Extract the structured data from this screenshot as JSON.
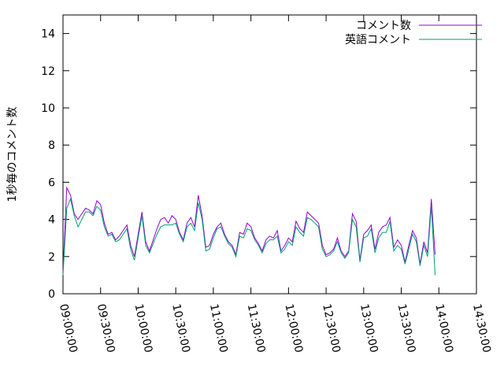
{
  "chart_data": {
    "type": "line",
    "ylabel": "1秒毎のコメント数",
    "legend": "top-right",
    "x": [
      "09:00:00",
      "09:03:00",
      "09:06:00",
      "09:09:00",
      "09:12:00",
      "09:15:00",
      "09:18:00",
      "09:21:00",
      "09:24:00",
      "09:27:00",
      "09:30:00",
      "09:33:00",
      "09:36:00",
      "09:39:00",
      "09:42:00",
      "09:45:00",
      "09:48:00",
      "09:51:00",
      "09:54:00",
      "09:57:00",
      "10:00:00",
      "10:03:00",
      "10:06:00",
      "10:09:00",
      "10:12:00",
      "10:15:00",
      "10:18:00",
      "10:21:00",
      "10:24:00",
      "10:27:00",
      "10:30:00",
      "10:33:00",
      "10:36:00",
      "10:39:00",
      "10:42:00",
      "10:45:00",
      "10:48:00",
      "10:51:00",
      "10:54:00",
      "10:57:00",
      "11:00:00",
      "11:03:00",
      "11:06:00",
      "11:09:00",
      "11:12:00",
      "11:15:00",
      "11:18:00",
      "11:21:00",
      "11:24:00",
      "11:27:00",
      "11:30:00",
      "11:33:00",
      "11:36:00",
      "11:39:00",
      "11:42:00",
      "11:45:00",
      "11:48:00",
      "11:51:00",
      "11:54:00",
      "11:57:00",
      "12:00:00",
      "12:03:00",
      "12:06:00",
      "12:09:00",
      "12:12:00",
      "12:15:00",
      "12:18:00",
      "12:21:00",
      "12:24:00",
      "12:27:00",
      "12:30:00",
      "12:33:00",
      "12:36:00",
      "12:39:00",
      "12:42:00",
      "12:45:00",
      "12:48:00",
      "12:51:00",
      "12:54:00",
      "12:57:00",
      "13:00:00",
      "13:03:00",
      "13:06:00",
      "13:09:00",
      "13:12:00",
      "13:15:00",
      "13:18:00",
      "13:21:00",
      "13:24:00",
      "13:27:00",
      "13:30:00",
      "13:33:00",
      "13:36:00",
      "13:39:00",
      "13:42:00",
      "13:45:00",
      "13:48:00",
      "13:51:00",
      "13:54:00",
      "13:57:00"
    ],
    "series": [
      {
        "name": "コメント数",
        "color": "#9400d3",
        "values": [
          1.2,
          5.7,
          5.3,
          4.3,
          4.0,
          4.3,
          4.6,
          4.5,
          4.3,
          5.0,
          4.8,
          3.8,
          3.2,
          3.3,
          2.9,
          3.1,
          3.4,
          3.7,
          2.6,
          2.0,
          3.2,
          4.4,
          2.8,
          2.3,
          2.9,
          3.5,
          4.0,
          4.1,
          3.8,
          4.2,
          4.0,
          3.3,
          2.9,
          3.8,
          4.1,
          3.6,
          5.3,
          4.2,
          2.5,
          2.6,
          3.2,
          3.6,
          3.8,
          3.2,
          2.8,
          2.6,
          2.1,
          3.3,
          3.2,
          3.8,
          3.6,
          3.0,
          2.7,
          2.3,
          2.9,
          3.1,
          3.0,
          3.4,
          2.3,
          2.6,
          3.0,
          2.8,
          3.9,
          3.5,
          3.3,
          4.4,
          4.2,
          4.0,
          3.8,
          2.6,
          2.1,
          2.2,
          2.4,
          3.0,
          2.3,
          2.0,
          2.3,
          4.3,
          3.9,
          1.8,
          3.2,
          3.4,
          3.7,
          2.4,
          3.3,
          3.6,
          3.7,
          4.1,
          2.5,
          2.9,
          2.6,
          1.7,
          2.6,
          3.4,
          3.0,
          1.6,
          2.8,
          2.2,
          5.1,
          2.1
        ]
      },
      {
        "name": "英語コメント",
        "color": "#009e73",
        "values": [
          1.0,
          4.6,
          5.1,
          4.2,
          3.6,
          4.0,
          4.4,
          4.4,
          4.2,
          4.7,
          4.5,
          3.6,
          3.1,
          3.2,
          2.8,
          2.9,
          3.2,
          3.5,
          2.4,
          1.8,
          3.0,
          4.2,
          2.6,
          2.2,
          2.7,
          3.2,
          3.6,
          3.7,
          3.7,
          3.7,
          3.8,
          3.2,
          2.8,
          3.6,
          3.8,
          3.4,
          4.9,
          4.0,
          2.3,
          2.4,
          3.0,
          3.5,
          3.6,
          3.1,
          2.7,
          2.5,
          2.0,
          3.1,
          3.0,
          3.5,
          3.4,
          2.9,
          2.6,
          2.2,
          2.7,
          2.9,
          2.9,
          3.1,
          2.2,
          2.4,
          2.8,
          2.6,
          3.6,
          3.3,
          3.1,
          4.1,
          4.0,
          3.8,
          3.6,
          2.4,
          2.0,
          2.1,
          2.3,
          2.8,
          2.2,
          1.9,
          2.2,
          4.0,
          3.6,
          1.7,
          3.0,
          3.1,
          3.5,
          2.2,
          3.0,
          3.3,
          3.3,
          3.9,
          2.3,
          2.6,
          2.4,
          1.6,
          2.4,
          3.2,
          2.8,
          1.5,
          2.6,
          2.0,
          4.7,
          1.0
        ]
      }
    ],
    "xlim": [
      "09:00:00",
      "14:30:00"
    ],
    "xticks": [
      "09:00:00",
      "09:30:00",
      "10:00:00",
      "10:30:00",
      "11:00:00",
      "11:30:00",
      "12:00:00",
      "12:30:00",
      "13:00:00",
      "13:30:00",
      "14:00:00",
      "14:30:00"
    ],
    "ylim": [
      0,
      15
    ],
    "yticks": [
      0,
      2,
      4,
      6,
      8,
      10,
      12,
      14
    ]
  }
}
